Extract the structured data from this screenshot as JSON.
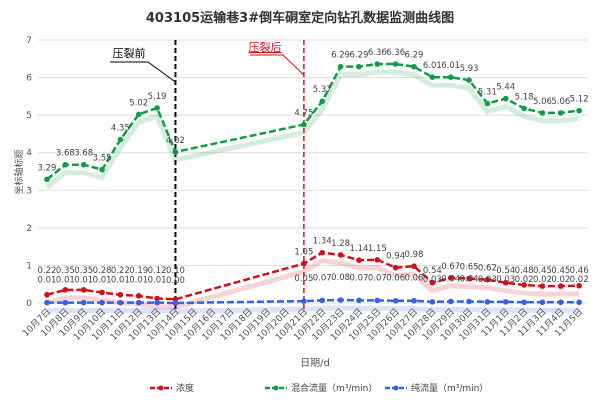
{
  "chart_data": {
    "type": "line",
    "title": "403105运输巷3#倒车硐室定向钻孔数据监测曲线图",
    "xlabel": "日期/d",
    "ylabel": "坐标轴标题",
    "ylim": [
      0,
      7
    ],
    "yticks": [
      "0",
      "1",
      "2",
      "3",
      "4",
      "5",
      "6",
      "7"
    ],
    "grid": true,
    "legend_position": "bottom",
    "categories": [
      "10月7日",
      "10月8日",
      "10月9日",
      "10月10日",
      "10月11日",
      "10月12日",
      "10月13日",
      "10月14日",
      "10月15日",
      "10月16日",
      "10月17日",
      "10月18日",
      "10月19日",
      "10月20日",
      "10月21日",
      "10月22日",
      "10月23日",
      "10月24日",
      "10月25日",
      "10月26日",
      "10月27日",
      "10月28日",
      "10月29日",
      "10月30日",
      "10月31日",
      "11月1日",
      "11月2日",
      "11月3日",
      "11月4日",
      "11月5日"
    ],
    "series": [
      {
        "name": "浓度",
        "color": "#d0111b",
        "values": [
          0.22,
          0.35,
          0.35,
          0.28,
          0.22,
          0.19,
          0.12,
          0.1,
          null,
          null,
          null,
          null,
          null,
          null,
          1.05,
          1.34,
          1.28,
          1.14,
          1.15,
          0.94,
          0.98,
          0.54,
          0.67,
          0.65,
          0.62,
          0.54,
          0.48,
          0.45,
          0.45,
          0.46
        ]
      },
      {
        "name": "混合流量（m³/min）",
        "color": "#119c45",
        "values": [
          3.29,
          3.68,
          3.68,
          3.55,
          4.35,
          5.02,
          5.19,
          4.02,
          null,
          null,
          null,
          null,
          null,
          null,
          4.75,
          5.37,
          6.29,
          6.29,
          6.36,
          6.36,
          6.29,
          6.01,
          6.01,
          5.93,
          5.31,
          5.44,
          5.18,
          5.06,
          5.06,
          5.12
        ]
      },
      {
        "name": "纯流量（m³/min）",
        "color": "#3a5fe0",
        "values": [
          0.01,
          0.01,
          0.01,
          0.01,
          0.01,
          0.01,
          0.01,
          0.0,
          null,
          null,
          null,
          null,
          null,
          null,
          0.05,
          0.07,
          0.08,
          0.07,
          0.07,
          0.06,
          0.06,
          0.03,
          0.04,
          0.04,
          0.03,
          0.03,
          0.02,
          0.02,
          0.02,
          0.02
        ]
      }
    ],
    "annotations": [
      {
        "text": "压裂前",
        "at": "10月14日",
        "color": "#000000"
      },
      {
        "text": "压裂后",
        "at": "10月21日",
        "color": "#d0111b"
      }
    ]
  }
}
